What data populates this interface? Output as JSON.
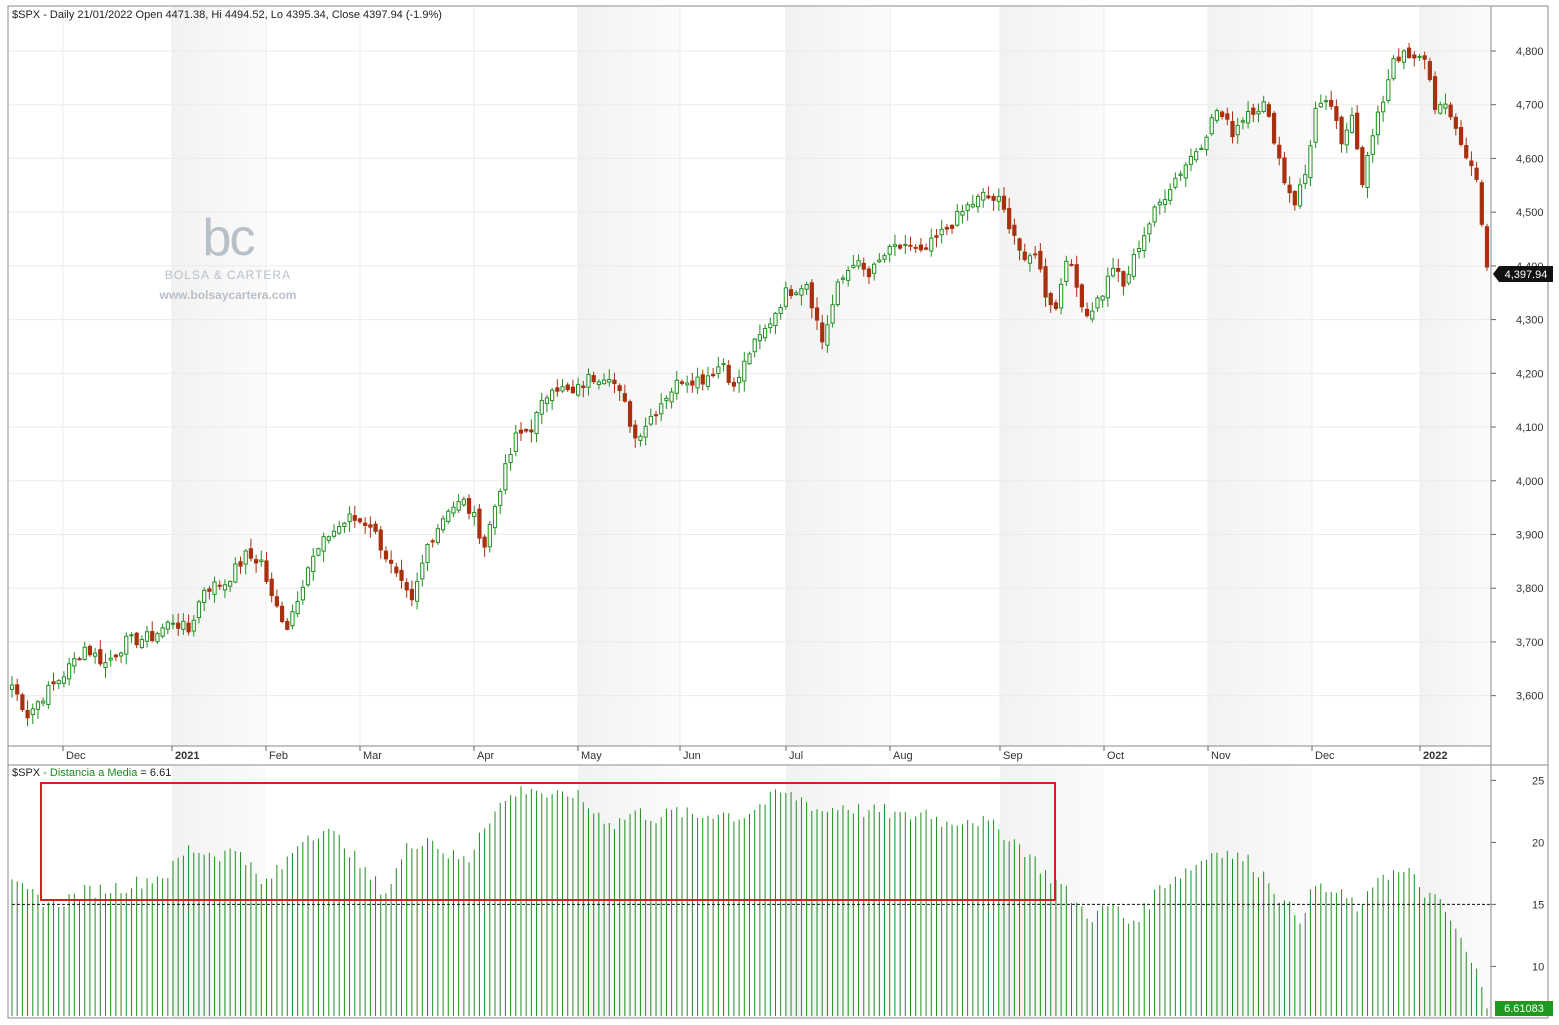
{
  "header": {
    "symbol": "$SPX",
    "info": "- Daily 21/01/2022 Open 4471.38, Hi 4494.52, Lo 4395.34, Close 4397.94 (-1.9%)"
  },
  "indicator_header": {
    "symbol": "$SPX",
    "name": "- Distancia a Media",
    "value_text": "= 6.61"
  },
  "watermark": {
    "logo_text": "bc",
    "name": "BOLSA & CARTERA",
    "url": "www.bolsaycartera.com"
  },
  "last_price_label": "4,397.94",
  "indicator_last_label": "6.61083",
  "colors": {
    "up": "#1f8f1f",
    "down": "#a8300f",
    "indicator": "#1f8f1f",
    "highlight_box": "#d42020",
    "band_shade": "#f2f2f2"
  },
  "chart_data": [
    {
      "type": "candlestick",
      "title": "",
      "x_tick_labels": [
        "Dec",
        "2021",
        "Feb",
        "Mar",
        "Apr",
        "May",
        "Jun",
        "Jul",
        "Aug",
        "Sep",
        "Oct",
        "Nov",
        "Dec",
        "2022"
      ],
      "y_tick_labels": [
        "3,600",
        "3,700",
        "3,800",
        "3,900",
        "4,000",
        "4,100",
        "4,200",
        "4,300",
        "4,400",
        "4,500",
        "4,600",
        "4,700",
        "4,800"
      ],
      "ylim": [
        3510,
        4880
      ],
      "grid": true,
      "last_close": 4397.94,
      "close_anchors": [
        [
          0,
          3620
        ],
        [
          3,
          3565
        ],
        [
          6,
          3600
        ],
        [
          10,
          3640
        ],
        [
          14,
          3690
        ],
        [
          18,
          3660
        ],
        [
          22,
          3700
        ],
        [
          27,
          3710
        ],
        [
          31,
          3740
        ],
        [
          34,
          3720
        ],
        [
          37,
          3800
        ],
        [
          41,
          3810
        ],
        [
          45,
          3860
        ],
        [
          48,
          3850
        ],
        [
          50,
          3780
        ],
        [
          53,
          3730
        ],
        [
          57,
          3840
        ],
        [
          61,
          3900
        ],
        [
          65,
          3930
        ],
        [
          69,
          3920
        ],
        [
          74,
          3820
        ],
        [
          77,
          3770
        ],
        [
          80,
          3880
        ],
        [
          84,
          3950
        ],
        [
          87,
          3960
        ],
        [
          89,
          3930
        ],
        [
          91,
          3880
        ],
        [
          94,
          3990
        ],
        [
          97,
          4080
        ],
        [
          100,
          4100
        ],
        [
          104,
          4180
        ],
        [
          108,
          4160
        ],
        [
          111,
          4190
        ],
        [
          115,
          4200
        ],
        [
          118,
          4140
        ],
        [
          120,
          4080
        ],
        [
          123,
          4120
        ],
        [
          126,
          4160
        ],
        [
          129,
          4190
        ],
        [
          133,
          4190
        ],
        [
          137,
          4220
        ],
        [
          139,
          4170
        ],
        [
          142,
          4240
        ],
        [
          145,
          4280
        ],
        [
          149,
          4350
        ],
        [
          153,
          4370
        ],
        [
          156,
          4260
        ],
        [
          159,
          4360
        ],
        [
          162,
          4410
        ],
        [
          165,
          4380
        ],
        [
          168,
          4420
        ],
        [
          172,
          4440
        ],
        [
          175,
          4420
        ],
        [
          178,
          4450
        ],
        [
          181,
          4480
        ],
        [
          184,
          4510
        ],
        [
          187,
          4530
        ],
        [
          190,
          4520
        ],
        [
          193,
          4460
        ],
        [
          195,
          4400
        ],
        [
          197,
          4430
        ],
        [
          199,
          4350
        ],
        [
          201,
          4320
        ],
        [
          203,
          4420
        ],
        [
          205,
          4360
        ],
        [
          207,
          4310
        ],
        [
          210,
          4350
        ],
        [
          212,
          4400
        ],
        [
          214,
          4360
        ],
        [
          217,
          4440
        ],
        [
          220,
          4500
        ],
        [
          223,
          4550
        ],
        [
          226,
          4590
        ],
        [
          229,
          4630
        ],
        [
          232,
          4690
        ],
        [
          235,
          4650
        ],
        [
          238,
          4690
        ],
        [
          241,
          4700
        ],
        [
          243,
          4640
        ],
        [
          245,
          4560
        ],
        [
          247,
          4520
        ],
        [
          249,
          4570
        ],
        [
          251,
          4690
        ],
        [
          254,
          4700
        ],
        [
          256,
          4620
        ],
        [
          258,
          4690
        ],
        [
          260,
          4560
        ],
        [
          262,
          4640
        ],
        [
          264,
          4710
        ],
        [
          266,
          4790
        ],
        [
          268,
          4790
        ],
        [
          270,
          4780
        ],
        [
          272,
          4790
        ],
        [
          274,
          4700
        ],
        [
          276,
          4690
        ],
        [
          278,
          4660
        ],
        [
          280,
          4600
        ],
        [
          282,
          4570
        ],
        [
          283,
          4480
        ],
        [
          284,
          4397.94
        ]
      ],
      "series": [
        {
          "name": "",
          "values": []
        }
      ]
    },
    {
      "type": "bar",
      "title": "",
      "y_tick_labels": [
        "10",
        "15",
        "20",
        "25"
      ],
      "ylim": [
        6,
        26
      ],
      "reference_line": 15,
      "last_value": 6.61,
      "value_anchors": [
        [
          0,
          16.5
        ],
        [
          8,
          15.0
        ],
        [
          14,
          16.0
        ],
        [
          22,
          16.5
        ],
        [
          30,
          17.5
        ],
        [
          34,
          19.5
        ],
        [
          40,
          19.0
        ],
        [
          44,
          19.5
        ],
        [
          48,
          16.5
        ],
        [
          52,
          18.0
        ],
        [
          56,
          20.5
        ],
        [
          60,
          21.0
        ],
        [
          64,
          20.0
        ],
        [
          68,
          17.5
        ],
        [
          72,
          16.0
        ],
        [
          76,
          19.5
        ],
        [
          80,
          20.5
        ],
        [
          84,
          19.0
        ],
        [
          88,
          18.5
        ],
        [
          90,
          21.0
        ],
        [
          94,
          23.0
        ],
        [
          97,
          24.0
        ],
        [
          100,
          24.5
        ],
        [
          104,
          23.5
        ],
        [
          108,
          24.0
        ],
        [
          112,
          22.5
        ],
        [
          116,
          21.5
        ],
        [
          120,
          22.5
        ],
        [
          124,
          22.0
        ],
        [
          128,
          22.5
        ],
        [
          132,
          22.0
        ],
        [
          136,
          22.5
        ],
        [
          140,
          22.0
        ],
        [
          144,
          23.0
        ],
        [
          148,
          24.0
        ],
        [
          152,
          23.5
        ],
        [
          156,
          22.5
        ],
        [
          160,
          23.0
        ],
        [
          164,
          22.5
        ],
        [
          168,
          22.5
        ],
        [
          172,
          22.0
        ],
        [
          176,
          22.5
        ],
        [
          180,
          21.5
        ],
        [
          184,
          22.0
        ],
        [
          188,
          21.5
        ],
        [
          192,
          20.5
        ],
        [
          196,
          19.0
        ],
        [
          199,
          17.5
        ],
        [
          202,
          16.5
        ],
        [
          205,
          15.0
        ],
        [
          208,
          14.0
        ],
        [
          212,
          15.0
        ],
        [
          215,
          13.5
        ],
        [
          218,
          14.5
        ],
        [
          221,
          16.5
        ],
        [
          225,
          17.5
        ],
        [
          229,
          18.5
        ],
        [
          232,
          19.5
        ],
        [
          235,
          19.0
        ],
        [
          238,
          18.5
        ],
        [
          242,
          17.0
        ],
        [
          245,
          15.0
        ],
        [
          248,
          14.0
        ],
        [
          251,
          16.5
        ],
        [
          254,
          16.0
        ],
        [
          257,
          15.5
        ],
        [
          260,
          14.5
        ],
        [
          263,
          17.5
        ],
        [
          266,
          17.5
        ],
        [
          269,
          17.5
        ],
        [
          272,
          16.0
        ],
        [
          275,
          15.0
        ],
        [
          278,
          13.0
        ],
        [
          280,
          11.0
        ],
        [
          282,
          9.5
        ],
        [
          284,
          6.61
        ]
      ],
      "series": [
        {
          "name": "Distancia a Media",
          "values": []
        }
      ]
    }
  ]
}
